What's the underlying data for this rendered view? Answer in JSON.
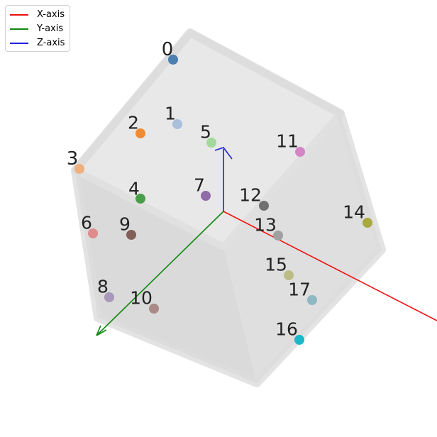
{
  "legend": {
    "items": [
      {
        "label": "X-axis",
        "color": "#ee1111"
      },
      {
        "label": "Y-axis",
        "color": "#118811"
      },
      {
        "label": "Z-axis",
        "color": "#2222dd"
      }
    ]
  },
  "axes_colors": {
    "x": "#ee1111",
    "y": "#118811",
    "z": "#2222dd"
  },
  "points": [
    {
      "label": "0",
      "color": "#4a7fb0"
    },
    {
      "label": "1",
      "color": "#a9bfdc"
    },
    {
      "label": "2",
      "color": "#ef8b33"
    },
    {
      "label": "3",
      "color": "#efb07f"
    },
    {
      "label": "4",
      "color": "#4a9e4a"
    },
    {
      "label": "5",
      "color": "#a3d99a"
    },
    {
      "label": "6",
      "color": "#e08c8c"
    },
    {
      "label": "7",
      "color": "#8f6ba8"
    },
    {
      "label": "8",
      "color": "#a998bb"
    },
    {
      "label": "9",
      "color": "#825f58"
    },
    {
      "label": "10",
      "color": "#a98a86"
    },
    {
      "label": "11",
      "color": "#d486c4"
    },
    {
      "label": "12",
      "color": "#707070"
    },
    {
      "label": "13",
      "color": "#a0a0a0"
    },
    {
      "label": "14",
      "color": "#a9aa3d"
    },
    {
      "label": "15",
      "color": "#bcbc86"
    },
    {
      "label": "16",
      "color": "#1bb8c9"
    },
    {
      "label": "17",
      "color": "#8db8c4"
    }
  ]
}
